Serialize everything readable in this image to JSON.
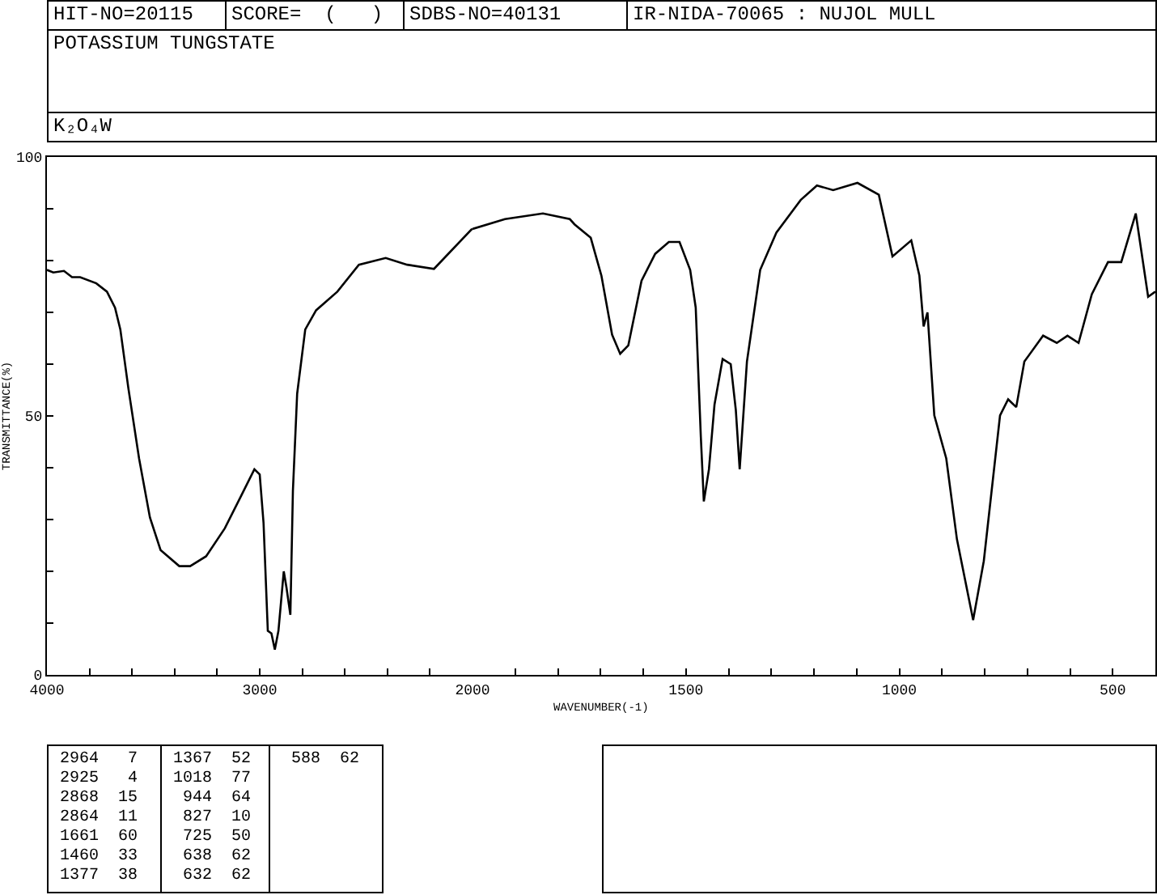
{
  "chart_data": [
    {
      "type": "line",
      "title": "POTASSIUM TUNGSTATE",
      "subtitle": "K₂O₄W",
      "ylabel": "TRANSMITTANCE(%)",
      "annotations": [
        "HIT-NO=20115",
        "SCORE=  (   )",
        "SDBS-NO=40131",
        "IR-NIDA-70065 : NUJOL MULL",
        "2964   7",
        "2925   4",
        "2868  15",
        "2864  11",
        "1661  60",
        "1460  33",
        "1377  38",
        "1367  52",
        "1018  77",
        " 944  64",
        " 827  10",
        " 725  50",
        " 638  62",
        " 632  62",
        " 588  62"
      ],
      "x": [
        4000,
        3970,
        3920,
        3882,
        3844,
        3768,
        3718,
        3680,
        3655,
        3617,
        3567,
        3516,
        3466,
        3378,
        3327,
        3252,
        3164,
        3088,
        3025,
        3000,
        2982,
        2962,
        2945,
        2929,
        2912,
        2887,
        2874,
        2856,
        2844,
        2824,
        2786,
        2735,
        2635,
        2534,
        2408,
        2307,
        2181,
        2005,
        2000
      ],
      "series": [
        {
          "color": "#000000",
          "values": [
            78.2,
            77.7,
            78,
            76.8,
            76.8,
            75.6,
            74,
            70.9,
            66.7,
            55.3,
            41.8,
            30.4,
            24.1,
            21,
            21,
            22.9,
            28.3,
            34.5,
            39.7,
            38.7,
            29.3,
            8.5,
            8,
            4.9,
            8.5,
            20,
            16.8,
            11.6,
            35.5,
            54.3,
            66.7,
            70.4,
            74,
            79.2,
            80.5,
            79.2,
            78.4,
            86,
            86.1
          ]
        }
      ],
      "xlim": [
        4000,
        2000
      ],
      "xticks": [
        4000,
        {
          "value": 3800,
          "label": null
        },
        {
          "value": 3600,
          "label": null
        },
        {
          "value": 3400,
          "label": null
        },
        {
          "value": 3200,
          "label": null
        },
        3000,
        {
          "value": 2800,
          "label": null
        },
        {
          "value": 2600,
          "label": null
        },
        {
          "value": 2400,
          "label": null
        },
        {
          "value": 2200,
          "label": null
        },
        2000
      ],
      "ylim": [
        0,
        100
      ],
      "yticks": [
        0,
        {
          "value": 10,
          "label": null
        },
        {
          "value": 20,
          "label": null
        },
        {
          "value": 30,
          "label": null
        },
        {
          "value": 40,
          "label": null
        },
        50,
        {
          "value": 60,
          "label": null
        },
        {
          "value": 70,
          "label": null
        },
        {
          "value": 80,
          "label": null
        },
        {
          "value": 90,
          "label": null
        },
        100
      ],
      "grid": false,
      "marker": "none",
      "line_style": "solid"
    },
    {
      "type": "line",
      "xlabel": "WAVENUMBER(-1)",
      "x": [
        2000,
        1924,
        1835,
        1772,
        1761,
        1723,
        1698,
        1673,
        1654,
        1635,
        1604,
        1572,
        1540,
        1515,
        1490,
        1477,
        1465,
        1458,
        1446,
        1433,
        1414,
        1395,
        1383,
        1374,
        1357,
        1326,
        1288,
        1231,
        1193,
        1155,
        1098,
        1048,
        1016,
        972,
        953,
        943,
        934,
        918,
        890,
        865,
        827,
        802,
        764,
        745,
        726,
        707,
        663,
        631,
        606,
        580,
        549,
        511,
        480,
        446,
        417,
        400
      ],
      "series": [
        {
          "color": "#000000",
          "values": [
            86.1,
            88,
            89.1,
            88,
            87,
            84.4,
            77.1,
            65.7,
            62,
            63.6,
            76.1,
            81.3,
            83.6,
            83.6,
            78.2,
            70.9,
            45.9,
            33.5,
            39.7,
            52.2,
            61,
            60,
            51.1,
            39.7,
            60.5,
            78.2,
            85.4,
            91.7,
            94.5,
            93.6,
            95,
            92.7,
            80.8,
            83.9,
            77.1,
            67.3,
            70,
            50.1,
            41.8,
            26.2,
            10.6,
            22,
            50.1,
            53.2,
            51.7,
            60.5,
            65.5,
            64.1,
            65.5,
            64.1,
            73.5,
            79.7,
            79.7,
            89.1,
            73,
            74
          ]
        }
      ],
      "xlim": [
        2000,
        400
      ],
      "xticks": [
        {
          "value": 1900,
          "label": null
        },
        {
          "value": 1800,
          "label": null
        },
        {
          "value": 1700,
          "label": null
        },
        {
          "value": 1600,
          "label": null
        },
        1500,
        {
          "value": 1400,
          "label": null
        },
        {
          "value": 1300,
          "label": null
        },
        {
          "value": 1200,
          "label": null
        },
        {
          "value": 1100,
          "label": null
        },
        1000,
        {
          "value": 900,
          "label": null
        },
        {
          "value": 800,
          "label": null
        },
        {
          "value": 700,
          "label": null
        },
        {
          "value": 600,
          "label": null
        },
        500
      ],
      "ylim": [
        0,
        100
      ],
      "tick_labels": "x",
      "grid": false,
      "marker": "none",
      "line_style": "solid"
    }
  ]
}
